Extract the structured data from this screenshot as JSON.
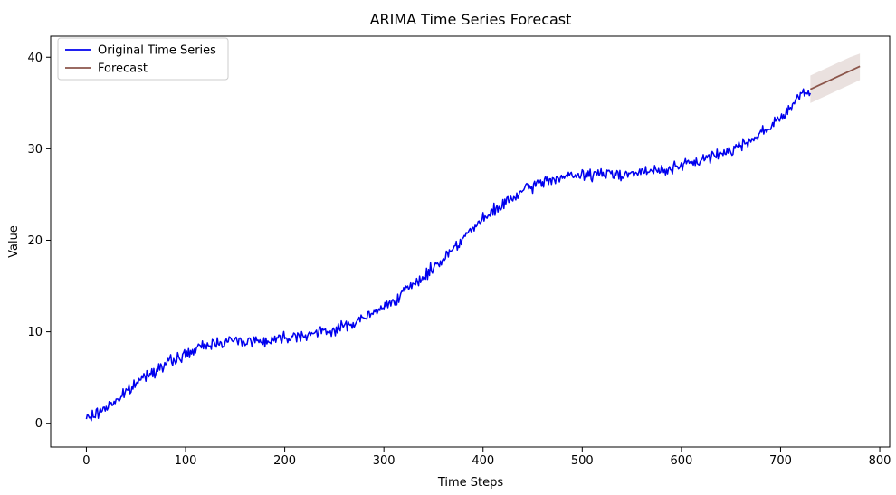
{
  "chart_data": {
    "type": "line",
    "title": "ARIMA Time Series Forecast",
    "xlabel": "Time Steps",
    "ylabel": "Value",
    "xlim": [
      -36,
      810
    ],
    "ylim": [
      -2.6,
      42.3
    ],
    "xticks": [
      0,
      100,
      200,
      300,
      400,
      500,
      600,
      700,
      800
    ],
    "yticks": [
      0,
      10,
      20,
      30,
      40
    ],
    "grid": false,
    "legend_position": "top-left",
    "series": [
      {
        "name": "Original Time Series",
        "color": "#0000ee",
        "x": [
          0,
          10,
          20,
          30,
          40,
          50,
          60,
          70,
          80,
          90,
          100,
          110,
          120,
          130,
          140,
          150,
          160,
          170,
          180,
          190,
          200,
          210,
          220,
          230,
          240,
          250,
          260,
          270,
          280,
          290,
          300,
          310,
          320,
          330,
          340,
          350,
          360,
          370,
          380,
          390,
          400,
          410,
          420,
          430,
          440,
          450,
          460,
          470,
          480,
          490,
          500,
          510,
          520,
          530,
          540,
          550,
          560,
          570,
          580,
          590,
          600,
          610,
          620,
          630,
          640,
          650,
          660,
          670,
          680,
          690,
          700,
          710,
          720,
          730
        ],
        "y": [
          0.5,
          1.0,
          1.8,
          2.5,
          3.3,
          4.3,
          5.3,
          5.9,
          6.4,
          7.0,
          7.5,
          8.0,
          8.5,
          8.8,
          9.0,
          9.0,
          9.0,
          9.0,
          9.0,
          9.2,
          9.4,
          9.6,
          9.7,
          9.8,
          10.0,
          10.2,
          10.6,
          11.0,
          11.5,
          12.0,
          12.7,
          13.5,
          14.3,
          15.1,
          16.0,
          17.0,
          18.0,
          19.2,
          20.3,
          21.3,
          22.2,
          23.1,
          23.9,
          24.6,
          25.3,
          25.9,
          26.4,
          26.7,
          26.9,
          27.0,
          27.1,
          27.2,
          27.2,
          27.3,
          27.3,
          27.3,
          27.4,
          27.5,
          27.7,
          27.9,
          28.1,
          28.4,
          28.8,
          29.1,
          29.5,
          29.9,
          30.4,
          31.0,
          31.7,
          32.5,
          33.4,
          34.5,
          35.8,
          36.3
        ]
      },
      {
        "name": "Forecast",
        "color": "#8c564b",
        "x": [
          730,
          740,
          750,
          760,
          770,
          780
        ],
        "y": [
          36.5,
          37.0,
          37.5,
          38.0,
          38.5,
          39.0
        ],
        "lower": [
          35.0,
          35.5,
          36.0,
          36.5,
          37.0,
          37.5
        ],
        "upper": [
          38.0,
          38.5,
          39.0,
          39.5,
          40.0,
          40.4
        ]
      }
    ]
  }
}
